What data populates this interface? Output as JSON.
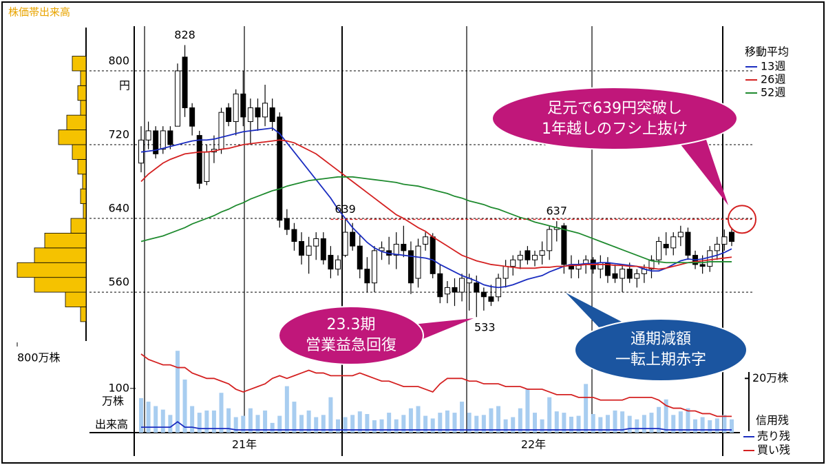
{
  "chart_data": {
    "type": "candlestick",
    "ylim": [
      510,
      850
    ],
    "yticks": [
      560,
      640,
      720,
      800
    ],
    "y_unit": "円",
    "candles": {
      "open": [
        700,
        725,
        735,
        715,
        735,
        740,
        815,
        760,
        730,
        680,
        712,
        715,
        760,
        745,
        775,
        745,
        760,
        750,
        760,
        750,
        640,
        628,
        615,
        600,
        610,
        618,
        600,
        585,
        600,
        625,
        610,
        585,
        570,
        605,
        605,
        600,
        612,
        605,
        575,
        612,
        620,
        580,
        558,
        565,
        560,
        570,
        570,
        560,
        555,
        555,
        575,
        588,
        595,
        605,
        595,
        600,
        605,
        628,
        632,
        590,
        585,
        590,
        595,
        585,
        592,
        580,
        575,
        585,
        575,
        580,
        585,
        595,
        612,
        608,
        620,
        625,
        600,
        590,
        588,
        605,
        612,
        625
      ],
      "high": [
        740,
        745,
        740,
        740,
        740,
        808,
        828,
        765,
        735,
        720,
        730,
        760,
        765,
        780,
        800,
        770,
        770,
        785,
        770,
        755,
        650,
        635,
        625,
        620,
        625,
        625,
        610,
        600,
        639,
        635,
        622,
        598,
        610,
        615,
        620,
        625,
        632,
        615,
        618,
        625,
        624,
        590,
        572,
        575,
        580,
        580,
        578,
        565,
        568,
        580,
        595,
        600,
        605,
        610,
        605,
        615,
        632,
        637,
        635,
        600,
        595,
        600,
        598,
        600,
        598,
        590,
        590,
        592,
        585,
        590,
        600,
        620,
        625,
        625,
        632,
        630,
        605,
        600,
        610,
        620,
        628,
        630
      ],
      "low": [
        690,
        715,
        705,
        710,
        715,
        740,
        750,
        730,
        672,
        676,
        700,
        710,
        740,
        730,
        740,
        720,
        735,
        740,
        735,
        630,
        622,
        605,
        590,
        580,
        595,
        590,
        575,
        578,
        598,
        605,
        575,
        560,
        560,
        595,
        590,
        585,
        598,
        558,
        565,
        605,
        575,
        548,
        548,
        545,
        550,
        540,
        533,
        540,
        545,
        550,
        565,
        578,
        585,
        590,
        588,
        590,
        595,
        615,
        580,
        575,
        575,
        580,
        580,
        575,
        570,
        570,
        560,
        570,
        565,
        570,
        575,
        590,
        600,
        600,
        610,
        595,
        585,
        580,
        582,
        595,
        605,
        610
      ],
      "close": [
        725,
        735,
        710,
        735,
        720,
        800,
        760,
        740,
        678,
        712,
        715,
        755,
        745,
        775,
        750,
        760,
        750,
        765,
        745,
        638,
        628,
        615,
        600,
        610,
        618,
        595,
        585,
        595,
        625,
        610,
        585,
        570,
        605,
        608,
        600,
        612,
        605,
        570,
        610,
        620,
        580,
        555,
        565,
        560,
        575,
        575,
        560,
        555,
        550,
        575,
        588,
        595,
        600,
        595,
        600,
        605,
        628,
        630,
        590,
        585,
        590,
        595,
        585,
        592,
        578,
        575,
        585,
        575,
        580,
        585,
        595,
        615,
        608,
        620,
        625,
        600,
        590,
        588,
        605,
        612,
        620,
        615
      ]
    },
    "moving_average_title": "移動平均",
    "series": [
      {
        "name": "13週",
        "color": "#1a2cc0",
        "values": [
          712,
          713,
          714,
          716,
          718,
          720,
          722,
          724,
          725,
          725,
          726,
          728,
          730,
          732,
          734,
          735,
          736,
          737,
          738,
          732,
          722,
          712,
          702,
          692,
          682,
          672,
          662,
          650,
          640,
          630,
          622,
          614,
          608,
          604,
          602,
          601,
          600,
          599,
          598,
          597,
          595,
          590,
          586,
          582,
          578,
          575,
          572,
          568,
          566,
          565,
          566,
          568,
          571,
          574,
          576,
          578,
          582,
          585,
          588,
          590,
          590,
          591,
          591,
          592,
          592,
          591,
          590,
          589,
          588,
          585,
          583,
          583,
          586,
          590,
          594,
          596,
          595,
          596,
          598,
          600,
          603,
          607
        ]
      },
      {
        "name": "26週",
        "color": "#d42020",
        "values": [
          680,
          688,
          694,
          700,
          704,
          707,
          710,
          711,
          712,
          712,
          713,
          715,
          716,
          718,
          720,
          721,
          722,
          723,
          724,
          725,
          724,
          722,
          718,
          714,
          710,
          704,
          698,
          692,
          686,
          680,
          674,
          668,
          662,
          656,
          650,
          644,
          640,
          635,
          630,
          626,
          620,
          615,
          610,
          605,
          600,
          597,
          594,
          592,
          590,
          589,
          588,
          587,
          586,
          586,
          586,
          587,
          587,
          588,
          588,
          589,
          589,
          590,
          590,
          590,
          590,
          589,
          589,
          588,
          588,
          587,
          586,
          585,
          586,
          588,
          590,
          592,
          593,
          594,
          595,
          596,
          597,
          598
        ]
      },
      {
        "name": "52週",
        "color": "#1e8a2e",
        "values": [
          615,
          617,
          619,
          621,
          624,
          627,
          630,
          634,
          637,
          640,
          643,
          647,
          650,
          654,
          657,
          661,
          664,
          667,
          670,
          672,
          675,
          677,
          679,
          681,
          682,
          683,
          684,
          685,
          685,
          685,
          684,
          683,
          682,
          681,
          680,
          679,
          677,
          676,
          675,
          673,
          671,
          669,
          667,
          664,
          662,
          659,
          657,
          655,
          652,
          650,
          647,
          644,
          641,
          639,
          636,
          634,
          632,
          630,
          628,
          626,
          624,
          621,
          618,
          615,
          612,
          609,
          606,
          603,
          600,
          597,
          594,
          593,
          592,
          592,
          592,
          592,
          592,
          592,
          593,
          593,
          593,
          593
        ]
      }
    ],
    "x_labels": [
      "21年",
      "22年"
    ],
    "annotations": [
      [
        "足元で639円突破し",
        "1年越しのフシ上抜け"
      ],
      [
        "23.3期",
        "営業益急回復"
      ],
      [
        "通期減額",
        "一転上期赤字"
      ]
    ],
    "volume_profile": {
      "title": "株価帯出来高",
      "color": "#f5c200",
      "bins": [
        528,
        544,
        560,
        576,
        592,
        608,
        624,
        640,
        656,
        672,
        688,
        704,
        720,
        736,
        752,
        768,
        784,
        800,
        816
      ],
      "values": [
        64,
        240,
        600,
        800,
        600,
        480,
        176,
        32,
        64,
        40,
        96,
        160,
        320,
        224,
        64,
        96,
        64,
        160
      ],
      "xlim": [
        0,
        800
      ],
      "xticks": [
        {
          "value": 800,
          "label": "800万株"
        }
      ]
    },
    "volume": {
      "label": "出来高",
      "unit": "万株",
      "color": "#a8cdf0",
      "ylim": [
        0,
        190
      ],
      "yticks": [
        100
      ],
      "values": [
        78,
        70,
        60,
        52,
        40,
        185,
        120,
        60,
        45,
        50,
        50,
        90,
        55,
        35,
        38,
        55,
        40,
        50,
        22,
        38,
        105,
        70,
        40,
        50,
        35,
        40,
        80,
        30,
        35,
        40,
        48,
        42,
        28,
        30,
        45,
        30,
        40,
        55,
        60,
        38,
        32,
        45,
        50,
        45,
        70,
        45,
        38,
        40,
        55,
        60,
        30,
        35,
        55,
        100,
        45,
        30,
        80,
        48,
        45,
        36,
        38,
        110,
        42,
        35,
        40,
        50,
        48,
        38,
        30,
        40,
        45,
        58,
        75,
        40,
        48,
        55,
        30,
        35,
        28,
        32,
        40,
        30
      ]
    },
    "margin": {
      "title": "信用残",
      "y2lim": [
        0,
        31
      ],
      "y2ticks": [
        {
          "value": 20,
          "label": "20万株"
        }
      ],
      "series": [
        {
          "name": "売り残",
          "color": "#1a2cc0",
          "values": [
            2,
            2,
            2,
            2,
            2,
            4,
            2,
            2,
            1.5,
            1.5,
            1.5,
            1.5,
            1.5,
            1,
            1,
            1,
            1,
            1,
            1,
            1,
            1,
            1,
            1,
            1,
            1,
            1,
            1,
            1,
            1,
            1,
            1,
            1,
            1,
            1,
            1,
            1,
            1,
            1,
            1,
            1,
            1,
            1,
            1,
            1,
            1,
            1,
            1,
            1,
            1,
            1,
            1,
            1,
            1,
            1,
            1,
            1,
            1,
            1,
            1,
            1,
            1,
            1,
            1,
            1,
            1,
            1,
            1,
            1.5,
            1.5,
            1.5,
            1.5,
            1.5,
            1,
            1,
            1,
            1,
            1,
            1,
            1,
            1,
            1,
            1
          ]
        },
        {
          "name": "買い残",
          "color": "#d42020",
          "values": [
            29,
            27,
            26,
            25,
            25,
            24,
            24,
            22,
            21,
            20,
            20,
            19,
            18,
            16,
            15,
            16,
            17,
            18,
            20,
            21,
            20,
            21,
            22,
            23,
            22,
            22,
            21,
            21,
            21,
            21,
            22,
            21,
            20,
            19,
            19,
            18,
            17,
            17,
            17,
            16,
            15,
            18,
            20,
            20,
            20,
            19,
            19,
            18,
            18,
            18,
            17,
            17,
            17,
            16,
            16,
            16,
            15,
            14,
            14,
            14,
            13,
            13,
            13,
            12,
            12,
            12,
            12,
            13,
            13,
            13,
            13,
            12,
            10,
            9,
            9,
            8,
            8,
            7,
            7,
            6,
            6,
            6
          ]
        }
      ]
    }
  }
}
